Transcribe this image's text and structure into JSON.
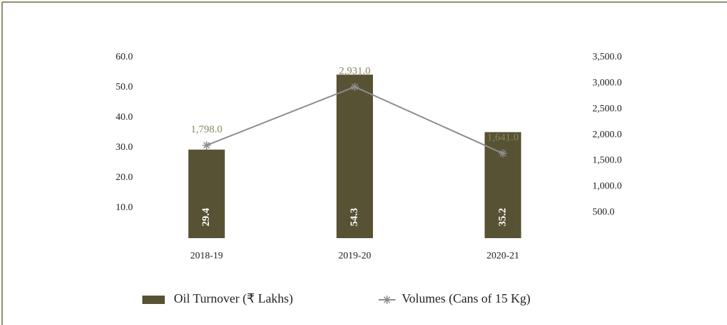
{
  "chart_data": {
    "type": "bar",
    "categories": [
      "2018-19",
      "2019-20",
      "2020-21"
    ],
    "series": [
      {
        "name": "Oil Turnover (₹ Lakhs)",
        "color": "#575234",
        "values": [
          29.4,
          54.3,
          35.2
        ]
      },
      {
        "name": "Volumes (Cans of 15 Kg)",
        "color": "#8c8c8c",
        "type": "line",
        "axis": "y2",
        "values": [
          1798,
          2931,
          1641
        ],
        "value_labels": [
          "1,798.0",
          "2,931.0",
          "1,641.0"
        ],
        "label_color": "#8a8560"
      }
    ],
    "ylim": [
      0,
      60
    ],
    "yticks": [
      {
        "value": 10,
        "label": "10.0"
      },
      {
        "value": 20,
        "label": "20.0"
      },
      {
        "value": 30,
        "label": "30.0"
      },
      {
        "value": 40,
        "label": "40.0"
      },
      {
        "value": 50,
        "label": "50.0"
      },
      {
        "value": 60,
        "label": "60.0"
      }
    ],
    "y2lim": [
      0,
      3500
    ],
    "y2ticks": [
      {
        "value": 500,
        "label": "500.0"
      },
      {
        "value": 1000,
        "label": "1,000.0"
      },
      {
        "value": 1500,
        "label": "1,500.0"
      },
      {
        "value": 2000,
        "label": "2,000.0"
      },
      {
        "value": 2500,
        "label": "2,500.0"
      },
      {
        "value": 3000,
        "label": "3,000.0"
      },
      {
        "value": 3500,
        "label": "3,500.0"
      }
    ]
  }
}
